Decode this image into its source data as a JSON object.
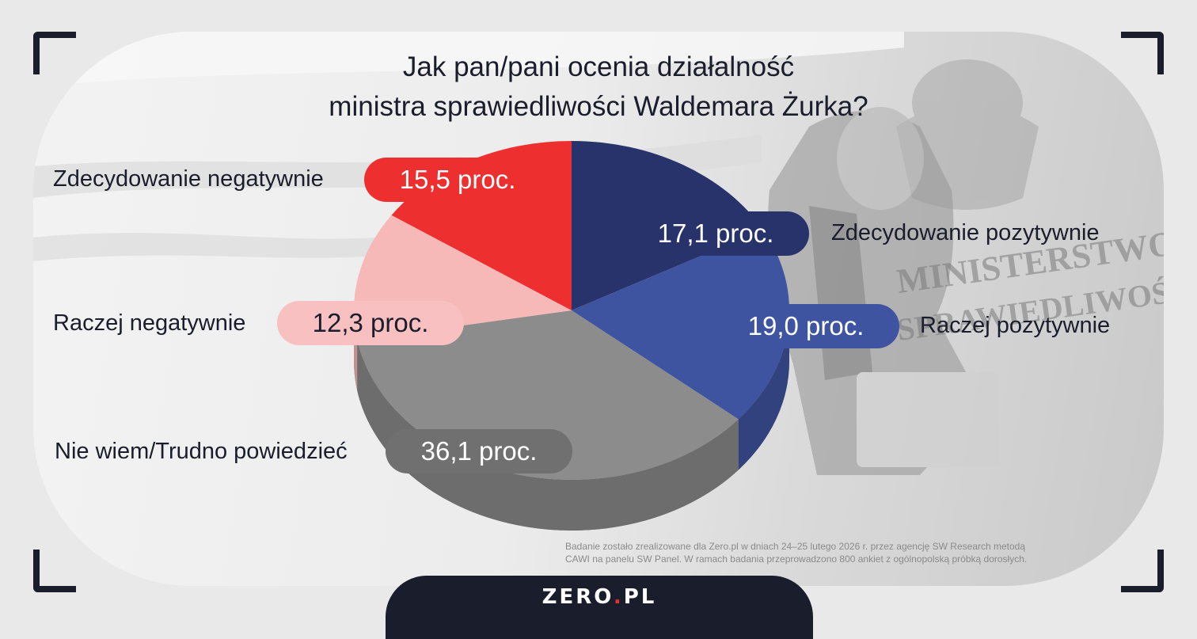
{
  "title": {
    "line1": "Jak pan/pani ocenia działalność",
    "line2": "ministra sprawiedliwości Waldemara Żurka?"
  },
  "chart_data": {
    "type": "pie",
    "title": "Jak pan/pani ocenia działalność ministra sprawiedliwości Waldemara Żurka?",
    "unit": "proc.",
    "categories": [
      "Zdecydowanie pozytywnie",
      "Raczej pozytywnie",
      "Nie wiem/Trudno powiedzieć",
      "Raczej negatywnie",
      "Zdecydowanie negatywnie"
    ],
    "values": [
      17.1,
      19.0,
      36.1,
      12.3,
      15.5
    ],
    "value_labels": [
      "17,1 proc.",
      "19,0 proc.",
      "36,1 proc.",
      "12,3 proc.",
      "15,5 proc."
    ],
    "colors": [
      "#27336a",
      "#3f54a1",
      "#8c8c8c",
      "#f7b8b8",
      "#ee2f2f"
    ],
    "start": "12 o'clock, clockwise",
    "legend": "none"
  },
  "labels": {
    "zp": {
      "category": "Zdecydowanie pozytywnie",
      "value": "17,1 proc."
    },
    "rp": {
      "category": "Raczej pozytywnie",
      "value": "19,0 proc."
    },
    "nw": {
      "category": "Nie wiem/Trudno powiedzieć",
      "value": "36,1 proc."
    },
    "rn": {
      "category": "Raczej negatywnie",
      "value": "12,3 proc."
    },
    "zn": {
      "category": "Zdecydowanie negatywnie",
      "value": "15,5 proc."
    }
  },
  "pill_colors": {
    "zp": "#27336a",
    "rp": "#3f54a1",
    "nw": "#707070",
    "rn": "#f8c0c0",
    "zn": "#ee2f2f"
  },
  "footnote": {
    "line1": "Badanie zostało zrealizowane dla Zero.pl w dniach 24–25 lutego 2026 r. przez agencję SW Research metodą",
    "line2": "CAWI na panelu SW Panel. W ramach badania przeprowadzono 800 ankiet z ogólnopolską próbką dorosłych."
  },
  "brand": {
    "name": "ZERO",
    "dot": ".",
    "suffix": "PL"
  },
  "background_text": {
    "line1": "MINISTERSTWO",
    "line2": "SPRAWIEDLIWOŚCI"
  }
}
